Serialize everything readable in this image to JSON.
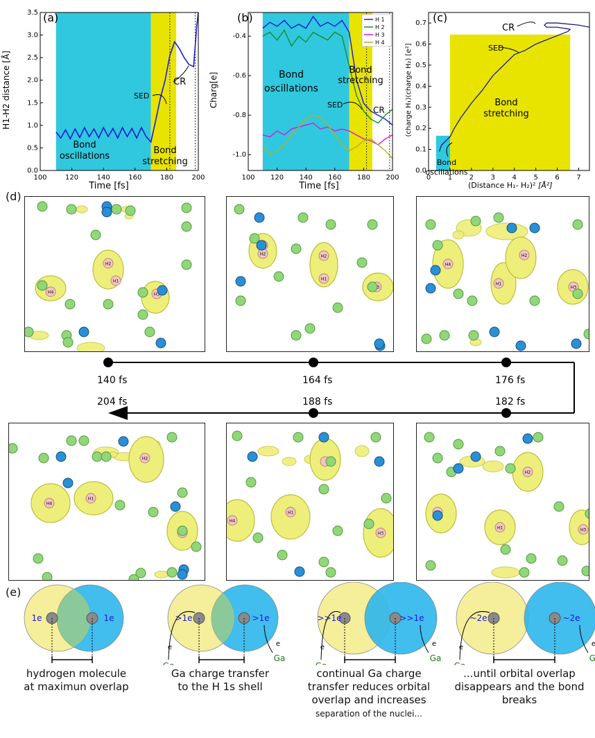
{
  "figure": {
    "a": {
      "letter": "(a)",
      "ylabel": "H1-H2 distance [Å]",
      "xlabel": "Time [fs]",
      "xticks": [
        "100",
        "120",
        "140",
        "160",
        "180",
        "200"
      ],
      "yticks": [
        "0.0",
        "0.5",
        "1.0",
        "1.5",
        "2.0",
        "2.5",
        "3.0",
        "3.5"
      ],
      "label_osc1": "Bond",
      "label_osc2": "oscillations",
      "label_str1": "Bond",
      "label_str2": "stretching",
      "label_sed": "SED",
      "label_cr": "CR",
      "colors": {
        "oscillation_bg": "#2fc8de",
        "stretching_bg": "#e8e400",
        "line": "#1a1ad6"
      }
    },
    "b": {
      "letter": "(b)",
      "ylabel": "Charg[e]",
      "xlabel": "Time [fs]",
      "xticks": [
        "100",
        "120",
        "140",
        "160",
        "180",
        "200"
      ],
      "yticks": [
        "-0.4",
        "-0.6",
        "-0.8",
        "-1.0"
      ],
      "label_osc1": "Bond",
      "label_osc2": "oscillations",
      "label_str1": "Bond",
      "label_str2": "stretching",
      "label_sed": "SED",
      "label_cr": "CR",
      "legend": [
        "H 1",
        "H 2",
        "H 3",
        "H 4"
      ]
    },
    "c": {
      "letter": "(c)",
      "ylabel": "(charge H₁)(charge H₂) [e²]",
      "xlabel_a": "(Distance H₁- H₂)²",
      "xlabel_b": "[Å²]",
      "xticks": [
        "0",
        "1",
        "2",
        "3",
        "4",
        "5",
        "6",
        "7"
      ],
      "yticks": [
        "0.0",
        "0.1",
        "0.2",
        "0.3",
        "0.4",
        "0.5",
        "0.6",
        "0.7"
      ],
      "label_sed": "SED",
      "label_cr": "CR",
      "label_str1": "Bond",
      "label_str2": "stretching",
      "label_osc1": "Bond",
      "label_osc2": "oscillations"
    },
    "d": {
      "letter": "(d)",
      "times_top": [
        "140 fs",
        "164 fs",
        "176 fs"
      ],
      "times_bottom": [
        "204 fs",
        "188 fs",
        "182 fs"
      ]
    },
    "e": {
      "letter": "(e)",
      "stages": [
        {
          "left_charge": "1e",
          "right_charge": "1e",
          "caption": [
            "hydrogen molecule",
            "at maximun overlap"
          ],
          "small": ""
        },
        {
          "left_charge": ">1e",
          "right_charge": ">1e",
          "caption": [
            "Ga charge transfer",
            "to the H 1s shell"
          ],
          "small": ""
        },
        {
          "left_charge": ">>1e",
          "right_charge": ">>1e",
          "caption": [
            "continual Ga charge",
            "transfer reduces orbital",
            "overlap and increases"
          ],
          "small": "separation of the nuclei..."
        },
        {
          "left_charge": "~2e",
          "right_charge": "~2e",
          "caption": [
            "...until orbital overlap",
            "disappears and the bond",
            "breaks"
          ],
          "small": ""
        }
      ],
      "ga": "Ga",
      "e": "e"
    }
  },
  "chart_data": [
    {
      "type": "line",
      "title": "",
      "xlabel": "Time [fs]",
      "ylabel": "H1-H2 distance [Å]",
      "xlim": [
        100,
        200
      ],
      "ylim": [
        0,
        3.5
      ],
      "series": [
        {
          "name": "",
          "x": [
            110,
            113,
            116,
            119,
            122,
            125,
            128,
            131,
            134,
            137,
            140,
            143,
            146,
            149,
            152,
            155,
            158,
            161,
            164,
            167,
            170,
            173,
            176,
            179,
            182,
            185,
            188,
            191,
            194,
            197,
            199,
            200
          ],
          "y": [
            0.85,
            0.72,
            0.9,
            0.7,
            0.92,
            0.73,
            0.95,
            0.75,
            0.92,
            0.72,
            0.95,
            0.75,
            0.93,
            0.72,
            0.95,
            0.75,
            0.93,
            0.72,
            0.95,
            0.75,
            0.63,
            1.1,
            1.6,
            2.0,
            2.55,
            2.85,
            2.7,
            2.5,
            2.35,
            2.3,
            3.2,
            3.5
          ]
        }
      ]
    },
    {
      "type": "line",
      "title": "",
      "xlabel": "Time [fs]",
      "ylabel": "Charg[e]",
      "xlim": [
        100,
        200
      ],
      "ylim": [
        -1.08,
        -0.28
      ],
      "series": [
        {
          "name": "H 1",
          "x": [
            110,
            115,
            120,
            125,
            130,
            135,
            140,
            145,
            150,
            155,
            160,
            165,
            170,
            175,
            180,
            185,
            190,
            195,
            200
          ],
          "y": [
            -0.36,
            -0.33,
            -0.35,
            -0.32,
            -0.36,
            -0.34,
            -0.36,
            -0.3,
            -0.35,
            -0.33,
            -0.35,
            -0.32,
            -0.38,
            -0.62,
            -0.74,
            -0.78,
            -0.8,
            -0.82,
            -0.85
          ]
        },
        {
          "name": "H 2",
          "x": [
            110,
            115,
            120,
            125,
            130,
            135,
            140,
            145,
            150,
            155,
            160,
            165,
            170,
            175,
            180,
            185,
            190,
            195,
            200
          ],
          "y": [
            -0.4,
            -0.38,
            -0.42,
            -0.37,
            -0.45,
            -0.4,
            -0.43,
            -0.38,
            -0.4,
            -0.42,
            -0.38,
            -0.4,
            -0.55,
            -0.7,
            -0.78,
            -0.82,
            -0.84,
            -0.8,
            -0.77
          ]
        },
        {
          "name": "H 3",
          "x": [
            110,
            115,
            120,
            125,
            130,
            135,
            140,
            145,
            150,
            155,
            160,
            165,
            170,
            175,
            180,
            185,
            190,
            195,
            200
          ],
          "y": [
            -0.9,
            -0.91,
            -0.88,
            -0.9,
            -0.87,
            -0.86,
            -0.85,
            -0.84,
            -0.87,
            -0.86,
            -0.88,
            -0.87,
            -0.88,
            -0.9,
            -0.92,
            -0.93,
            -0.95,
            -0.92,
            -0.9
          ]
        },
        {
          "name": "H 4",
          "x": [
            110,
            115,
            120,
            125,
            130,
            135,
            140,
            145,
            150,
            155,
            160,
            165,
            170,
            175,
            180,
            185,
            190,
            195,
            200
          ],
          "y": [
            -0.96,
            -1.0,
            -0.98,
            -0.95,
            -0.9,
            -0.86,
            -0.82,
            -0.8,
            -0.81,
            -0.85,
            -0.9,
            -0.95,
            -0.98,
            -0.96,
            -0.93,
            -0.92,
            -0.95,
            -0.98,
            -1.02
          ]
        }
      ]
    },
    {
      "type": "line",
      "title": "",
      "xlabel": "(Distance H₁- H₂)² [Å²]",
      "ylabel": "(charge H₁)(charge H₂) [e²]",
      "xlim": [
        0,
        7.5
      ],
      "ylim": [
        0,
        0.75
      ],
      "series": [
        {
          "name": "",
          "x": [
            0.5,
            0.6,
            0.8,
            1.0,
            1.2,
            1.5,
            2.0,
            2.5,
            3.0,
            3.5,
            4.0,
            4.5,
            5.0,
            5.5,
            6.0,
            6.5,
            6.6,
            6.0,
            5.5,
            5.4,
            5.5,
            6.0,
            7.0,
            7.5
          ],
          "y": [
            0.09,
            0.12,
            0.14,
            0.16,
            0.2,
            0.25,
            0.32,
            0.38,
            0.45,
            0.5,
            0.55,
            0.57,
            0.6,
            0.62,
            0.64,
            0.66,
            0.67,
            0.68,
            0.68,
            0.69,
            0.7,
            0.7,
            0.69,
            0.68
          ]
        }
      ]
    }
  ]
}
